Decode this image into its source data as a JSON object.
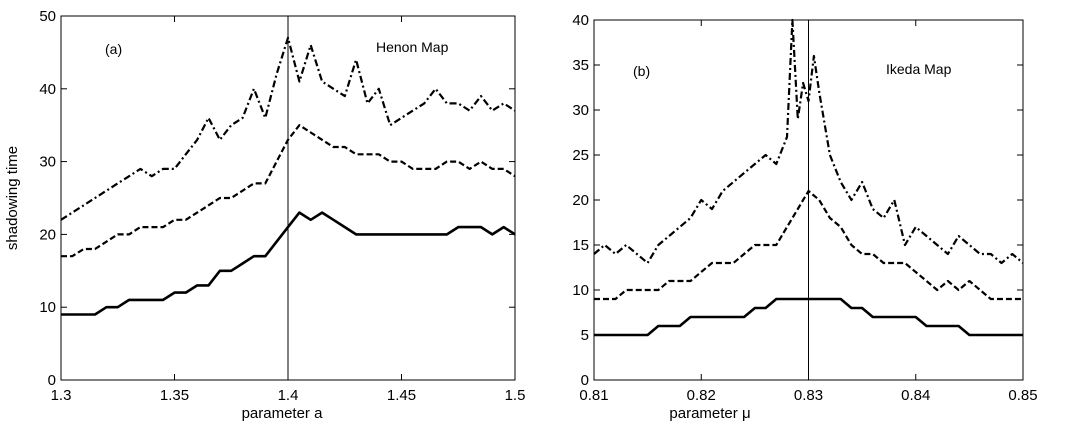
{
  "chart_data": [
    {
      "type": "line",
      "panel_label": "(a)",
      "title": "Henon Map",
      "xlabel": "parameter a",
      "ylabel": "shadowing time",
      "xlim": [
        1.3,
        1.5
      ],
      "ylim": [
        0,
        50
      ],
      "xticks": [
        1.3,
        1.35,
        1.4,
        1.45,
        1.5
      ],
      "xtick_labels": [
        "1.3",
        "1.35",
        "1.4",
        "1.45",
        "1.5"
      ],
      "yticks": [
        0,
        10,
        20,
        30,
        40,
        50
      ],
      "ytick_labels": [
        "0",
        "10",
        "20",
        "30",
        "40",
        "50"
      ],
      "vline_x": 1.4,
      "grid": false,
      "series": [
        {
          "style": "solid",
          "x": [
            1.3,
            1.305,
            1.31,
            1.315,
            1.32,
            1.325,
            1.33,
            1.335,
            1.34,
            1.345,
            1.35,
            1.355,
            1.36,
            1.365,
            1.37,
            1.375,
            1.38,
            1.385,
            1.39,
            1.395,
            1.4,
            1.405,
            1.41,
            1.415,
            1.42,
            1.425,
            1.43,
            1.435,
            1.44,
            1.445,
            1.45,
            1.455,
            1.46,
            1.465,
            1.47,
            1.475,
            1.48,
            1.485,
            1.49,
            1.495,
            1.5
          ],
          "values": [
            9,
            9,
            9,
            9,
            10,
            10,
            11,
            11,
            11,
            11,
            12,
            12,
            13,
            13,
            15,
            15,
            16,
            17,
            17,
            19,
            21,
            23,
            22,
            23,
            22,
            21,
            20,
            20,
            20,
            20,
            20,
            20,
            20,
            20,
            20,
            21,
            21,
            21,
            20,
            21,
            20
          ]
        },
        {
          "style": "dashed",
          "x": [
            1.3,
            1.305,
            1.31,
            1.315,
            1.32,
            1.325,
            1.33,
            1.335,
            1.34,
            1.345,
            1.35,
            1.355,
            1.36,
            1.365,
            1.37,
            1.375,
            1.38,
            1.385,
            1.39,
            1.395,
            1.4,
            1.405,
            1.41,
            1.415,
            1.42,
            1.425,
            1.43,
            1.435,
            1.44,
            1.445,
            1.45,
            1.455,
            1.46,
            1.465,
            1.47,
            1.475,
            1.48,
            1.485,
            1.49,
            1.495,
            1.5
          ],
          "values": [
            17,
            17,
            18,
            18,
            19,
            20,
            20,
            21,
            21,
            21,
            22,
            22,
            23,
            24,
            25,
            25,
            26,
            27,
            27,
            30,
            33,
            35,
            34,
            33,
            32,
            32,
            31,
            31,
            31,
            30,
            30,
            29,
            29,
            29,
            30,
            30,
            29,
            30,
            29,
            29,
            28
          ]
        },
        {
          "style": "dash-dot",
          "x": [
            1.3,
            1.305,
            1.31,
            1.315,
            1.32,
            1.325,
            1.33,
            1.335,
            1.34,
            1.345,
            1.35,
            1.355,
            1.36,
            1.365,
            1.37,
            1.375,
            1.38,
            1.385,
            1.39,
            1.395,
            1.4,
            1.405,
            1.41,
            1.415,
            1.42,
            1.425,
            1.43,
            1.435,
            1.44,
            1.445,
            1.45,
            1.455,
            1.46,
            1.465,
            1.47,
            1.475,
            1.48,
            1.485,
            1.49,
            1.495,
            1.5
          ],
          "values": [
            22,
            23,
            24,
            25,
            26,
            27,
            28,
            29,
            28,
            29,
            29,
            31,
            33,
            36,
            33,
            35,
            36,
            40,
            36,
            42,
            47,
            41,
            46,
            41,
            40,
            39,
            44,
            38,
            40,
            35,
            36,
            37,
            38,
            40,
            38,
            38,
            37,
            39,
            37,
            38,
            37
          ]
        }
      ]
    },
    {
      "type": "line",
      "panel_label": "(b)",
      "title": "Ikeda Map",
      "xlabel": "parameter μ",
      "ylabel": "",
      "xlim": [
        0.81,
        0.85
      ],
      "ylim": [
        0,
        40
      ],
      "xticks": [
        0.81,
        0.82,
        0.83,
        0.84,
        0.85
      ],
      "xtick_labels": [
        "0.81",
        "0.82",
        "0.83",
        "0.84",
        "0.85"
      ],
      "yticks": [
        0,
        5,
        10,
        15,
        20,
        25,
        30,
        35,
        40
      ],
      "ytick_labels": [
        "0",
        "5",
        "10",
        "15",
        "20",
        "25",
        "30",
        "35",
        "40"
      ],
      "vline_x": 0.83,
      "grid": false,
      "series": [
        {
          "style": "solid",
          "x": [
            0.81,
            0.811,
            0.812,
            0.813,
            0.814,
            0.815,
            0.816,
            0.817,
            0.818,
            0.819,
            0.82,
            0.821,
            0.822,
            0.823,
            0.824,
            0.825,
            0.826,
            0.827,
            0.828,
            0.829,
            0.83,
            0.831,
            0.832,
            0.833,
            0.834,
            0.835,
            0.836,
            0.837,
            0.838,
            0.839,
            0.84,
            0.841,
            0.842,
            0.843,
            0.844,
            0.845,
            0.846,
            0.847,
            0.848,
            0.849,
            0.85
          ],
          "values": [
            5,
            5,
            5,
            5,
            5,
            5,
            6,
            6,
            6,
            7,
            7,
            7,
            7,
            7,
            7,
            8,
            8,
            9,
            9,
            9,
            9,
            9,
            9,
            9,
            8,
            8,
            7,
            7,
            7,
            7,
            7,
            6,
            6,
            6,
            6,
            5,
            5,
            5,
            5,
            5,
            5
          ]
        },
        {
          "style": "dashed",
          "x": [
            0.81,
            0.811,
            0.812,
            0.813,
            0.814,
            0.815,
            0.816,
            0.817,
            0.818,
            0.819,
            0.82,
            0.821,
            0.822,
            0.823,
            0.824,
            0.825,
            0.826,
            0.827,
            0.828,
            0.829,
            0.83,
            0.831,
            0.832,
            0.833,
            0.834,
            0.835,
            0.836,
            0.837,
            0.838,
            0.839,
            0.84,
            0.841,
            0.842,
            0.843,
            0.844,
            0.845,
            0.846,
            0.847,
            0.848,
            0.849,
            0.85
          ],
          "values": [
            9,
            9,
            9,
            10,
            10,
            10,
            10,
            11,
            11,
            11,
            12,
            13,
            13,
            13,
            14,
            15,
            15,
            15,
            17,
            19,
            21,
            20,
            18,
            17,
            15,
            14,
            14,
            13,
            13,
            13,
            12,
            11,
            10,
            11,
            10,
            11,
            10,
            9,
            9,
            9,
            9
          ]
        },
        {
          "style": "dash-dot",
          "x": [
            0.81,
            0.811,
            0.812,
            0.813,
            0.814,
            0.815,
            0.816,
            0.817,
            0.818,
            0.819,
            0.82,
            0.821,
            0.822,
            0.823,
            0.824,
            0.825,
            0.826,
            0.827,
            0.828,
            0.8285,
            0.829,
            0.8295,
            0.83,
            0.8305,
            0.831,
            0.832,
            0.833,
            0.834,
            0.835,
            0.836,
            0.837,
            0.838,
            0.839,
            0.84,
            0.841,
            0.842,
            0.843,
            0.844,
            0.845,
            0.846,
            0.847,
            0.848,
            0.849,
            0.85
          ],
          "values": [
            14,
            15,
            14,
            15,
            14,
            13,
            15,
            16,
            17,
            18,
            20,
            19,
            21,
            22,
            23,
            24,
            25,
            24,
            27,
            40,
            29,
            33,
            31,
            36,
            32,
            25,
            22,
            20,
            22,
            19,
            18,
            20,
            15,
            17,
            16,
            15,
            14,
            16,
            15,
            14,
            14,
            13,
            14,
            13
          ]
        }
      ]
    }
  ]
}
